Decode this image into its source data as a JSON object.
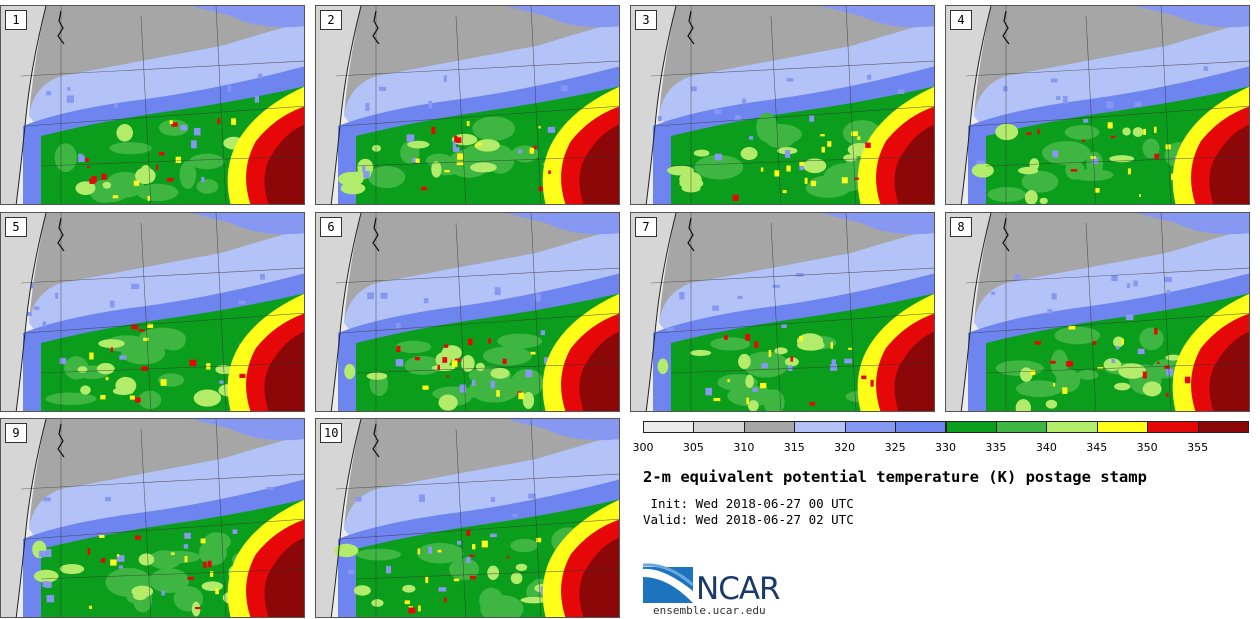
{
  "members": [
    "1",
    "2",
    "3",
    "4",
    "5",
    "6",
    "7",
    "8",
    "9",
    "10"
  ],
  "colorbar": {
    "ticks": [
      "300",
      "305",
      "310",
      "315",
      "320",
      "325",
      "330",
      "335",
      "340",
      "345",
      "350",
      "355"
    ],
    "colors": [
      "#ececec",
      "#d6d6d6",
      "#a6a6a6",
      "#b4c3f7",
      "#8798f2",
      "#6e84ef",
      "#0a9e1c",
      "#3fb642",
      "#b3ec6b",
      "#ffff1a",
      "#e60808",
      "#8c0808"
    ]
  },
  "title": "2-m equivalent potential temperature (K) postage stamp",
  "init": " Init: Wed 2018-06-27 00 UTC",
  "valid": "Valid: Wed 2018-06-27 02 UTC",
  "logo": {
    "name": "NCAR",
    "url": "ensemble.ucar.edu"
  }
}
